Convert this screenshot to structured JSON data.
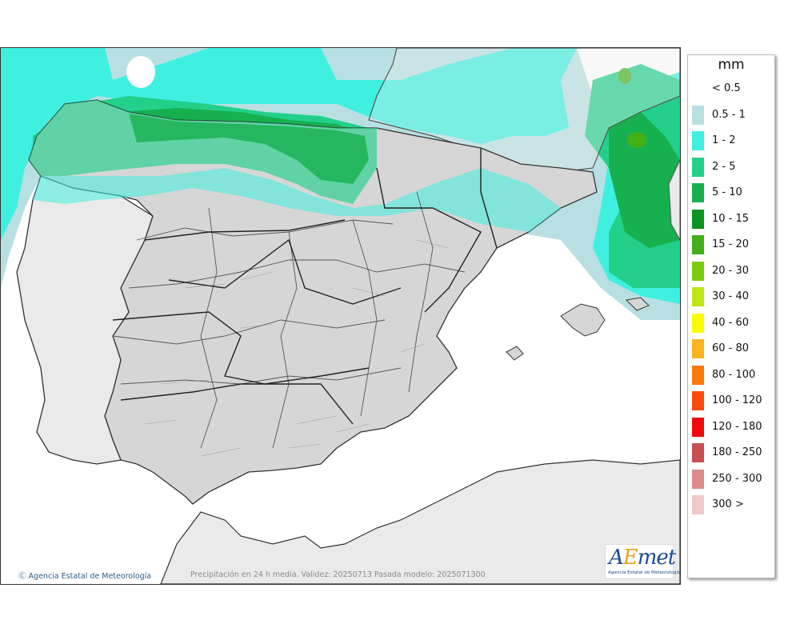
{
  "legend": {
    "unit": "mm",
    "items": [
      {
        "label": "< 0.5",
        "color": "#ffffff"
      },
      {
        "label": "0.5 - 1",
        "color": "#b8e0e3"
      },
      {
        "label": "1 - 2",
        "color": "#3ff0e0"
      },
      {
        "label": "2 - 5",
        "color": "#22d08a"
      },
      {
        "label": "5 - 10",
        "color": "#16b04e"
      },
      {
        "label": "10 - 15",
        "color": "#0a961e"
      },
      {
        "label": "15 - 20",
        "color": "#42b018"
      },
      {
        "label": "20 - 30",
        "color": "#7ccc10"
      },
      {
        "label": "30 - 40",
        "color": "#bee614"
      },
      {
        "label": "40 - 60",
        "color": "#fafa00"
      },
      {
        "label": "60 - 80",
        "color": "#fab41e"
      },
      {
        "label": "80 - 100",
        "color": "#fa7a0a"
      },
      {
        "label": "100 - 120",
        "color": "#fa4a0a"
      },
      {
        "label": "120 - 180",
        "color": "#f00a0a"
      },
      {
        "label": "180 - 250",
        "color": "#c85050"
      },
      {
        "label": "250 - 300",
        "color": "#dc8c8c"
      },
      {
        "label": "300 >",
        "color": "#f0c8c8"
      }
    ]
  },
  "map": {
    "credit": "Agencia Estatal de Meteorología",
    "caption": "Precipitación en 24 h media. Validez: 20250713 Pasada modelo: 2025071300"
  },
  "logo": {
    "word_a": "A",
    "word_e": "E",
    "word_rest": "met",
    "subtitle": "Agencia Estatal de Meteorología"
  }
}
